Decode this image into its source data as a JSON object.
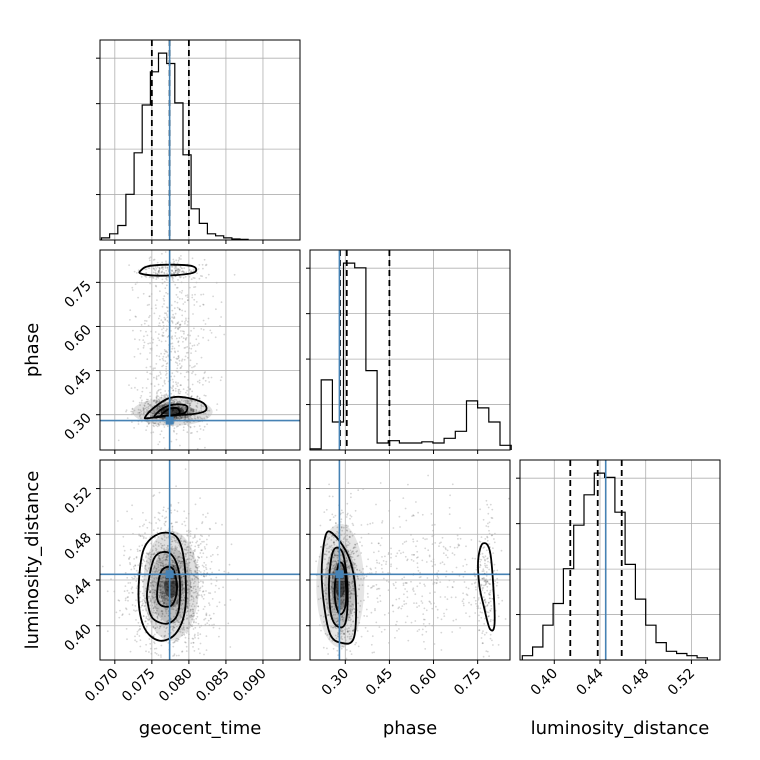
{
  "chart_data": {
    "type": "corner",
    "parameters": [
      "geocent_time",
      "phase",
      "luminosity_distance"
    ],
    "truths": {
      "geocent_time": 0.0774,
      "phase": 0.28,
      "luminosity_distance": 0.445
    },
    "colors": {
      "truth": "#4682b4",
      "hist": "#000000",
      "grid": "#b0b0b0"
    },
    "axes": {
      "geocent_time": {
        "range": [
          0.068,
          0.095
        ],
        "ticks": [
          0.07,
          0.075,
          0.08,
          0.085,
          0.09
        ],
        "tick_labels": [
          "0.070",
          "0.075",
          "0.080",
          "0.085",
          "0.090"
        ]
      },
      "phase": {
        "range": [
          0.18,
          0.86
        ],
        "ticks": [
          0.3,
          0.45,
          0.6,
          0.75
        ],
        "tick_labels": [
          "0.30",
          "0.45",
          "0.60",
          "0.75"
        ]
      },
      "luminosity_distance": {
        "range": [
          0.37,
          0.545
        ],
        "ticks": [
          0.4,
          0.44,
          0.48,
          0.52
        ],
        "tick_labels": [
          "0.40",
          "0.44",
          "0.48",
          "0.52"
        ]
      }
    },
    "marginals": {
      "geocent_time": {
        "bin_edges": [
          0.0682,
          0.0693,
          0.0704,
          0.0715,
          0.0726,
          0.0737,
          0.0748,
          0.0759,
          0.077,
          0.0781,
          0.0792,
          0.0803,
          0.0814,
          0.0825,
          0.0836,
          0.0847,
          0.0858,
          0.0869,
          0.088
        ],
        "counts": [
          1,
          3,
          7,
          22,
          42,
          65,
          81,
          90,
          85,
          66,
          41,
          15,
          8,
          3,
          2,
          1,
          0.5,
          0.3
        ],
        "quantiles": [
          0.075,
          0.0774,
          0.08
        ]
      },
      "phase": {
        "bin_edges": [
          0.18,
          0.218,
          0.256,
          0.294,
          0.332,
          0.37,
          0.408,
          0.446,
          0.484,
          0.522,
          0.56,
          0.598,
          0.636,
          0.674,
          0.712,
          0.75,
          0.788,
          0.826,
          0.864
        ],
        "counts": [
          0.5,
          30,
          12,
          80,
          78,
          34,
          3,
          4,
          3,
          3,
          3.5,
          3,
          5,
          8,
          21,
          18,
          12,
          2
        ],
        "quantiles": [
          0.282,
          0.305,
          0.45
        ]
      },
      "luminosity_distance": {
        "bin_edges": [
          0.372,
          0.381,
          0.39,
          0.399,
          0.408,
          0.417,
          0.426,
          0.435,
          0.444,
          0.453,
          0.462,
          0.471,
          0.48,
          0.489,
          0.498,
          0.507,
          0.516,
          0.525,
          0.534
        ],
        "counts": [
          1,
          3,
          8,
          13,
          21,
          31,
          38,
          43,
          42,
          34,
          22,
          14,
          8,
          4,
          2,
          1.5,
          1,
          0.5
        ],
        "quantiles": [
          0.414,
          0.438,
          0.459
        ]
      }
    },
    "contours": {
      "phase_vs_geocent_time": [
        {
          "level": "outer",
          "points": [
            [
              0.0735,
              0.79
            ],
            [
              0.0745,
              0.805
            ],
            [
              0.0775,
              0.81
            ],
            [
              0.0805,
              0.805
            ],
            [
              0.0808,
              0.785
            ],
            [
              0.0785,
              0.775
            ],
            [
              0.0755,
              0.773
            ],
            [
              0.0735,
              0.78
            ]
          ]
        },
        {
          "level": "outer",
          "points": [
            [
              0.0741,
              0.292
            ],
            [
              0.0752,
              0.322
            ],
            [
              0.0772,
              0.355
            ],
            [
              0.0792,
              0.36
            ],
            [
              0.0818,
              0.342
            ],
            [
              0.0823,
              0.315
            ],
            [
              0.0805,
              0.302
            ],
            [
              0.0772,
              0.298
            ],
            [
              0.0745,
              0.288
            ]
          ]
        },
        {
          "level": "middle",
          "points": [
            [
              0.0753,
              0.293
            ],
            [
              0.0765,
              0.322
            ],
            [
              0.0782,
              0.335
            ],
            [
              0.0797,
              0.33
            ],
            [
              0.0795,
              0.307
            ],
            [
              0.078,
              0.298
            ],
            [
              0.0762,
              0.293
            ]
          ]
        },
        {
          "level": "inner",
          "points": [
            [
              0.0762,
              0.295
            ],
            [
              0.0772,
              0.318
            ],
            [
              0.0784,
              0.322
            ],
            [
              0.0787,
              0.305
            ],
            [
              0.0775,
              0.297
            ]
          ]
        }
      ],
      "luminosity_distance_vs_geocent_time": [
        {
          "level": "outer",
          "points": [
            [
              0.0732,
              0.425
            ],
            [
              0.0738,
              0.465
            ],
            [
              0.0758,
              0.48
            ],
            [
              0.0783,
              0.478
            ],
            [
              0.0794,
              0.455
            ],
            [
              0.0795,
              0.415
            ],
            [
              0.0782,
              0.393
            ],
            [
              0.076,
              0.387
            ],
            [
              0.074,
              0.398
            ]
          ]
        },
        {
          "level": "middle",
          "points": [
            [
              0.0744,
              0.432
            ],
            [
              0.0754,
              0.46
            ],
            [
              0.0775,
              0.463
            ],
            [
              0.0787,
              0.445
            ],
            [
              0.0786,
              0.413
            ],
            [
              0.0772,
              0.402
            ],
            [
              0.0752,
              0.406
            ],
            [
              0.0745,
              0.418
            ]
          ]
        },
        {
          "level": "inner",
          "points": [
            [
              0.0757,
              0.427
            ],
            [
              0.0763,
              0.448
            ],
            [
              0.0778,
              0.45
            ],
            [
              0.0784,
              0.432
            ],
            [
              0.0777,
              0.418
            ],
            [
              0.0762,
              0.418
            ]
          ]
        }
      ],
      "luminosity_distance_vs_phase": [
        {
          "level": "outer",
          "points": [
            [
              0.22,
              0.44
            ],
            [
              0.232,
              0.478
            ],
            [
              0.26,
              0.48
            ],
            [
              0.312,
              0.46
            ],
            [
              0.335,
              0.43
            ],
            [
              0.33,
              0.39
            ],
            [
              0.288,
              0.385
            ],
            [
              0.245,
              0.395
            ]
          ]
        },
        {
          "level": "middle",
          "points": [
            [
              0.245,
              0.44
            ],
            [
              0.26,
              0.466
            ],
            [
              0.292,
              0.463
            ],
            [
              0.308,
              0.43
            ],
            [
              0.3,
              0.402
            ],
            [
              0.27,
              0.4
            ],
            [
              0.25,
              0.412
            ]
          ]
        },
        {
          "level": "inner",
          "points": [
            [
              0.265,
              0.437
            ],
            [
              0.28,
              0.455
            ],
            [
              0.298,
              0.448
            ],
            [
              0.302,
              0.42
            ],
            [
              0.285,
              0.41
            ],
            [
              0.268,
              0.418
            ]
          ]
        },
        {
          "level": "outer",
          "points": [
            [
              0.752,
              0.458
            ],
            [
              0.768,
              0.472
            ],
            [
              0.794,
              0.462
            ],
            [
              0.808,
              0.405
            ],
            [
              0.792,
              0.397
            ],
            [
              0.77,
              0.418
            ],
            [
              0.756,
              0.435
            ]
          ]
        }
      ]
    },
    "xlabels": [
      "geocent_time",
      "phase",
      "luminosity_distance"
    ],
    "ylabels": [
      "phase",
      "luminosity_distance"
    ]
  }
}
